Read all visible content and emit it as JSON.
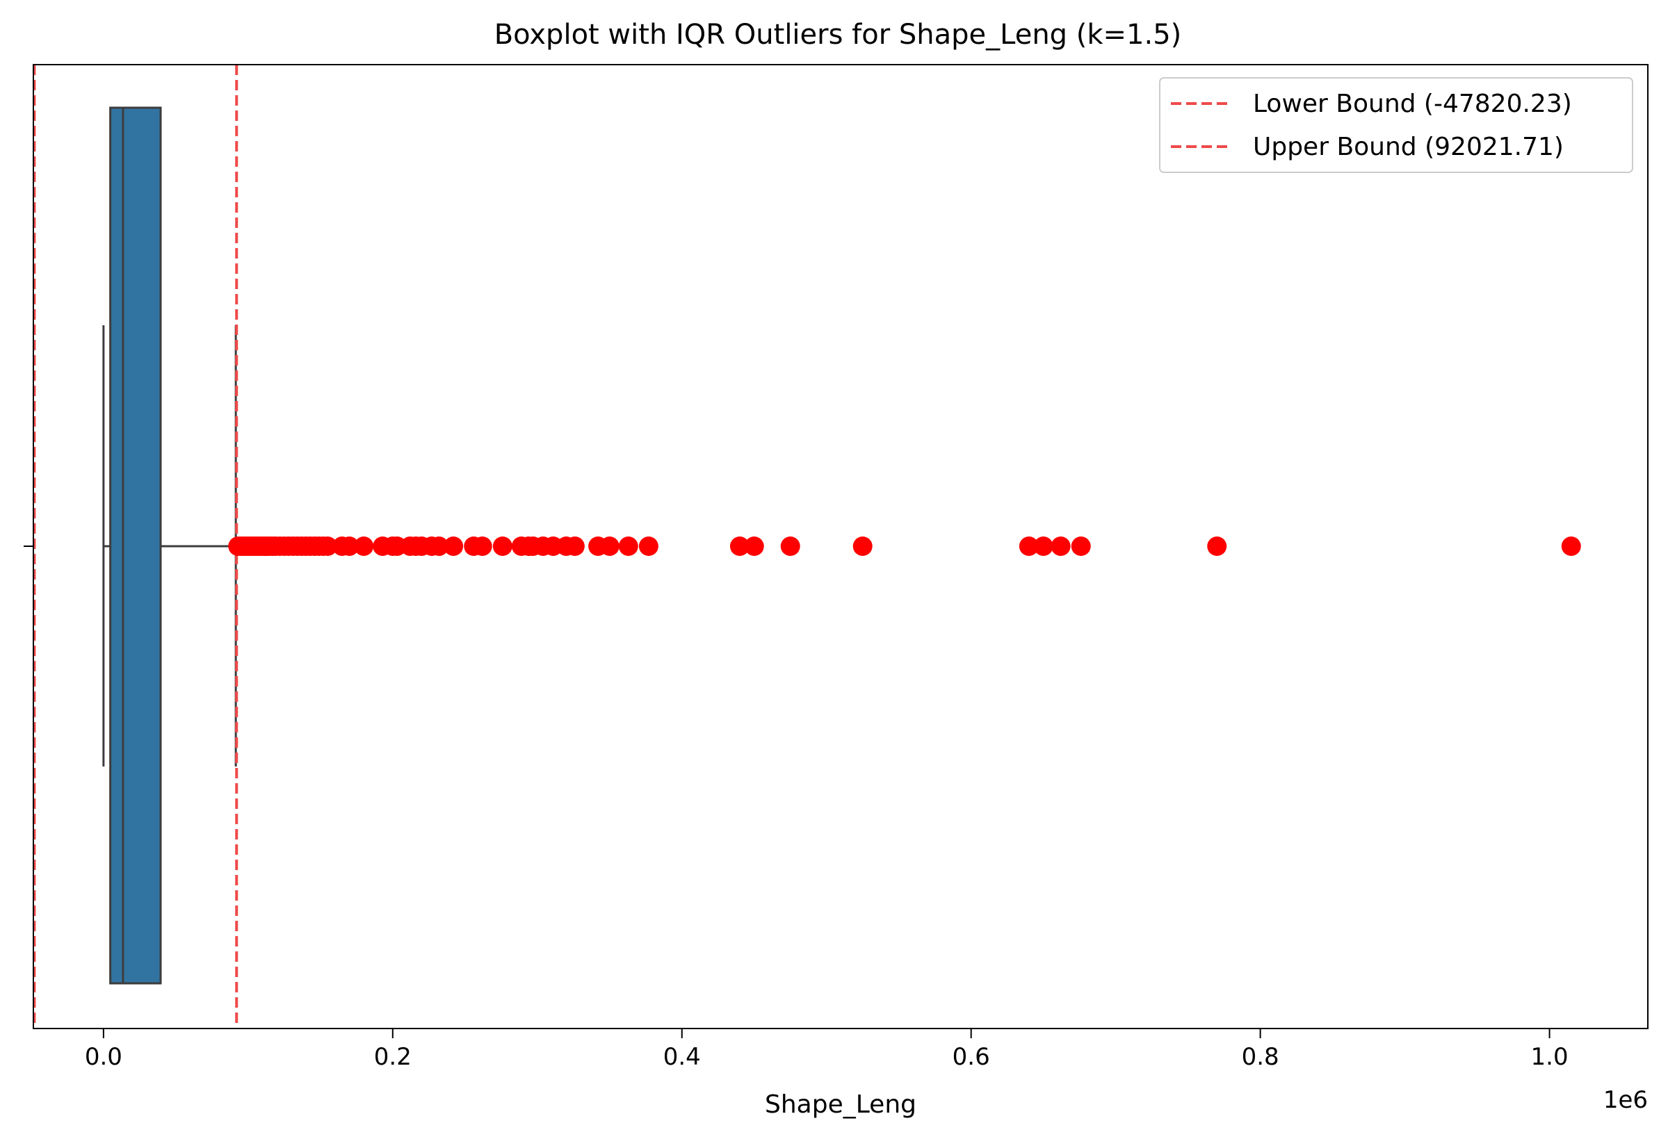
{
  "chart_data": {
    "type": "boxplot",
    "title": "Boxplot with IQR Outliers for Shape_Leng (k=1.5)",
    "xlabel": "Shape_Leng",
    "ylabel": "",
    "x_scale_label": "1e6",
    "x_scale": 1000000,
    "xlim": [
      -48500,
      1068000
    ],
    "x_ticks": [
      0.0,
      0.2,
      0.4,
      0.6,
      0.8,
      1.0
    ],
    "x_tick_labels": [
      "0.0",
      "0.2",
      "0.4",
      "0.6",
      "0.8",
      "1.0"
    ],
    "grid": false,
    "legend_position": "top-right",
    "box": {
      "whisker_low": 0,
      "q1": 4700,
      "median": 13500,
      "q3": 39500,
      "whisker_high": 91500,
      "fill_color": "#3274a1",
      "edge_color": "#3d3d3d"
    },
    "bounds": [
      {
        "label": "Lower Bound (-47820.23)",
        "value": -47820.23,
        "color": "#f04a4a"
      },
      {
        "label": "Upper Bound (92021.71)",
        "value": 92021.71,
        "color": "#f04a4a"
      }
    ],
    "outliers": {
      "color": "#ff0000",
      "values": [
        93000,
        95000,
        97000,
        99000,
        101000,
        103000,
        105000,
        107000,
        109000,
        111000,
        113000,
        115000,
        117000,
        119000,
        122000,
        125000,
        128000,
        131000,
        134000,
        137000,
        140000,
        143000,
        146000,
        149000,
        152000,
        155000,
        165000,
        170000,
        180000,
        193000,
        200000,
        203000,
        212000,
        216000,
        220000,
        227000,
        232000,
        242000,
        256000,
        262000,
        276000,
        289000,
        294000,
        297000,
        304000,
        311000,
        320000,
        326000,
        342000,
        350000,
        363000,
        377000,
        440000,
        450000,
        475000,
        525000,
        640000,
        650000,
        662000,
        676000,
        770000,
        1015000
      ]
    }
  }
}
